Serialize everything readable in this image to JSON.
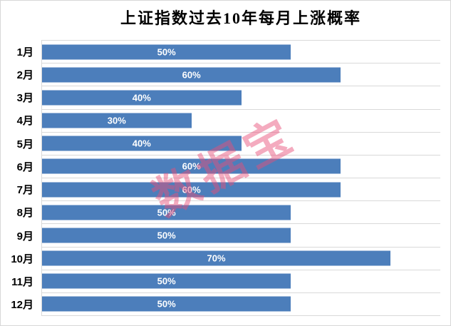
{
  "title": "上证指数过去10年每月上涨概率",
  "watermark_text": "数据宝",
  "colors": {
    "bar": "#4c7ebb",
    "gridline": "#d9d9d9",
    "title_text": "#000000",
    "category_text": "#000000",
    "value_text": "#ffffff",
    "watermark": "#e7507a",
    "background": "#ffffff",
    "border": "#d8d8d8"
  },
  "chart_data": {
    "type": "bar",
    "orientation": "horizontal",
    "title": "上证指数过去10年每月上涨概率",
    "categories": [
      "1月",
      "2月",
      "3月",
      "4月",
      "5月",
      "6月",
      "7月",
      "8月",
      "9月",
      "10月",
      "11月",
      "12月"
    ],
    "values": [
      50,
      60,
      40,
      30,
      40,
      60,
      60,
      50,
      50,
      70,
      50,
      50
    ],
    "display_values": [
      "50%",
      "60%",
      "40%",
      "30%",
      "40%",
      "60%",
      "60%",
      "50%",
      "50%",
      "70%",
      "50%",
      "50%"
    ],
    "xlabel": "",
    "ylabel": "",
    "xlim": [
      0,
      80
    ],
    "grid": "horizontal category boundary lines only",
    "legend": "none",
    "value_label_position": "center-inside-bar",
    "annotations": [
      "数据宝 watermark, pink, rotated diagonally over chart center"
    ]
  }
}
